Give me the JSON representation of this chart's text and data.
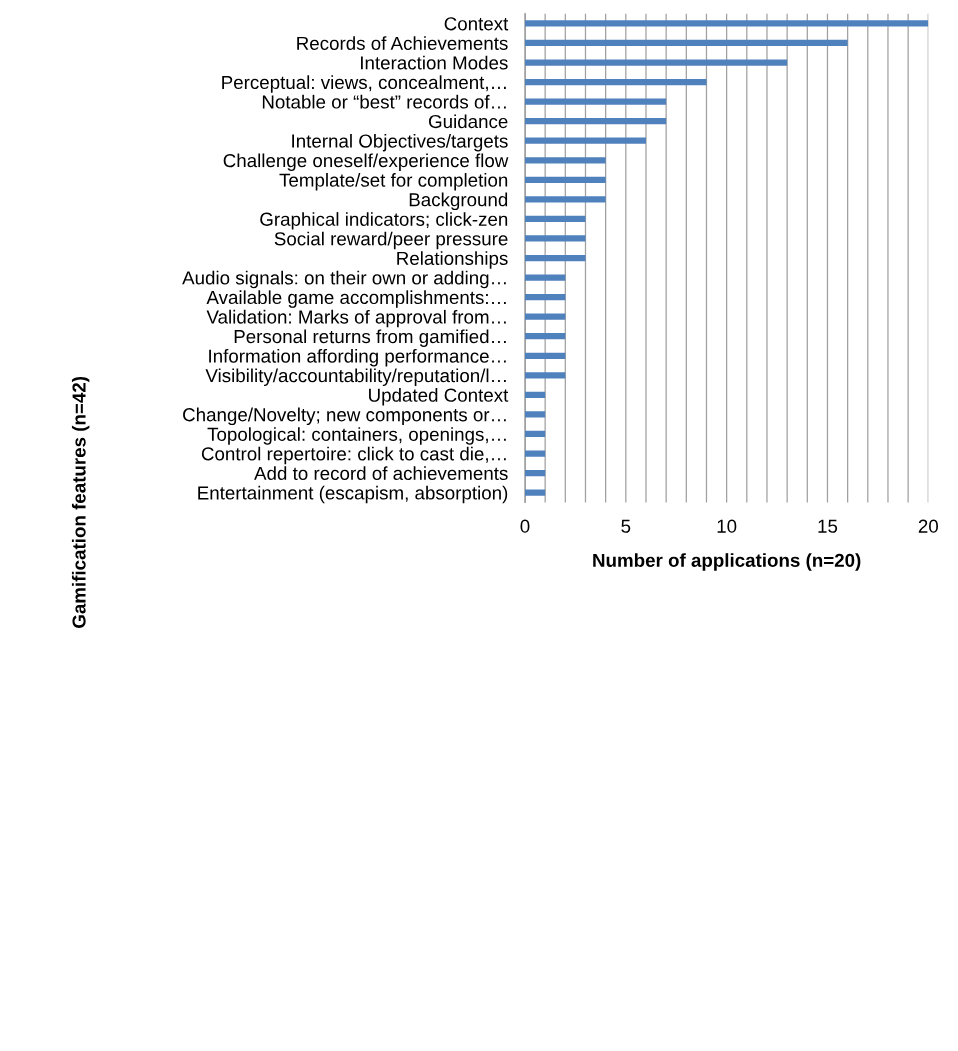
{
  "chart_data": {
    "type": "bar",
    "orientation": "horizontal",
    "xlabel": "Number of applications (n=20)",
    "ylabel": "Gamification features (n=42)",
    "categories": [
      "Context",
      "Records of Achievements",
      "Interaction Modes",
      "Perceptual: views, concealment,…",
      "Notable or “best” records of…",
      "Guidance",
      "Internal Objectives/targets",
      "Challenge oneself/experience flow",
      "Template/set for completion",
      "Background",
      "Graphical indicators; click-zen",
      "Social reward/peer pressure",
      "Relationships",
      "Audio signals: on their own or adding…",
      "Available game accomplishments:…",
      "Validation: Marks of approval from…",
      "Personal returns from gamified…",
      "Information affording performance…",
      "Visibility/accountability/reputation/l…",
      "Updated Context",
      "Change/Novelty; new components or…",
      "Topological: containers, openings,…",
      "Control repertoire: click to cast die,…",
      "Add to record of achievements",
      "Entertainment (escapism, absorption)"
    ],
    "values": [
      20,
      16,
      13,
      9,
      7,
      7,
      6,
      4,
      4,
      4,
      3,
      3,
      3,
      2,
      2,
      2,
      2,
      2,
      2,
      1,
      1,
      1,
      1,
      1,
      1
    ],
    "color": "#4f81bd",
    "xlim": [
      0,
      20
    ],
    "xticks": [
      0,
      {
        "value": 1,
        "label": null
      },
      {
        "value": 2,
        "label": null
      },
      {
        "value": 3,
        "label": null
      },
      {
        "value": 4,
        "label": null
      },
      5,
      {
        "value": 6,
        "label": null
      },
      {
        "value": 7,
        "label": null
      },
      {
        "value": 8,
        "label": null
      },
      {
        "value": 9,
        "label": null
      },
      10,
      {
        "value": 11,
        "label": null
      },
      {
        "value": 12,
        "label": null
      },
      {
        "value": 13,
        "label": null
      },
      {
        "value": 14,
        "label": null
      },
      15,
      {
        "value": 16,
        "label": null
      },
      {
        "value": 17,
        "label": null
      },
      {
        "value": 18,
        "label": null
      },
      {
        "value": 19,
        "label": null
      },
      20
    ],
    "grid": "x",
    "legend": false
  }
}
